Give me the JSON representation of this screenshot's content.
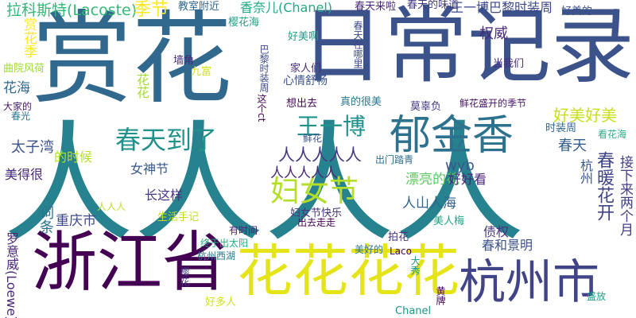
{
  "palette": {
    "dark_purple": "#440154",
    "indigo": "#3b528b",
    "blue": "#31688e",
    "teal": "#21918c",
    "green": "#35b779",
    "light_green": "#90d743",
    "yellow": "#e5e419"
  },
  "words": [
    {
      "text": "人人人人",
      "color": "#26828e"
    },
    {
      "text": "日常记录",
      "color": "#3b528b"
    },
    {
      "text": "赏花",
      "color": "#31688e"
    },
    {
      "text": "浙江省",
      "color": "#440154"
    },
    {
      "text": "花花花花",
      "color": "#e5e419"
    },
    {
      "text": "杭州市",
      "color": "#414487"
    },
    {
      "text": "郁金香",
      "color": "#2c728e"
    },
    {
      "text": "春天到了",
      "color": "#21918c"
    },
    {
      "text": "王一博",
      "color": "#21918c"
    },
    {
      "text": "妇女节",
      "color": "#b5de2b"
    },
    {
      "text": "人人人人人",
      "color": "#443983"
    },
    {
      "text": "好美好美",
      "color": "#c8e020"
    },
    {
      "text": "拉科斯特(Lacoste)",
      "color": "#35b779"
    },
    {
      "text": "季节",
      "color": "#fde725"
    },
    {
      "text": "教室附近",
      "color": "#31688e"
    },
    {
      "text": "香奈儿(Chanel)",
      "color": "#22a884"
    },
    {
      "text": "春天来啦",
      "color": "#482878"
    },
    {
      "text": "春天的味道",
      "color": "#443983"
    },
    {
      "text": "王一博巴黎时装周",
      "color": "#3e4989"
    },
    {
      "text": "好美的",
      "color": "#3b528b"
    },
    {
      "text": "樱花海",
      "color": "#1fa187"
    },
    {
      "text": "好美啊",
      "color": "#1f9e89"
    },
    {
      "text": "春天在哪里",
      "color": "#3e4989"
    },
    {
      "text": "权威",
      "color": "#482878"
    },
    {
      "text": "赏花季",
      "color": "#fde725"
    },
    {
      "text": "曲院风荷",
      "color": "#a0da39"
    },
    {
      "text": "花海",
      "color": "#31688e"
    },
    {
      "text": "墙角",
      "color": "#482878"
    },
    {
      "text": "九富",
      "color": "#d0e11c"
    },
    {
      "text": "家人们",
      "color": "#472d7b"
    },
    {
      "text": "心情舒畅",
      "color": "#3b528b"
    },
    {
      "text": "巴黎时装周",
      "color": "#3e4989"
    },
    {
      "text": "当我们",
      "color": "#472d7b"
    },
    {
      "text": "花花",
      "color": "#a5db36"
    },
    {
      "text": "大家的",
      "color": "#48186a"
    },
    {
      "text": "这个ct",
      "color": "#440154"
    },
    {
      "text": "想出去",
      "color": "#460a5d"
    },
    {
      "text": "真的很美",
      "color": "#2a788e"
    },
    {
      "text": "莫辜负",
      "color": "#443983"
    },
    {
      "text": "鲜花盛开的季节",
      "color": "#481467"
    },
    {
      "text": "春光",
      "color": "#2a788e"
    },
    {
      "text": "时装周",
      "color": "#31688e"
    },
    {
      "text": "看花海",
      "color": "#29af7f"
    },
    {
      "text": "春天",
      "color": "#355f8d"
    },
    {
      "text": "太子湾",
      "color": "#3b528b"
    },
    {
      "text": "鲜花",
      "color": "#3b528b"
    },
    {
      "text": "的时候",
      "color": "#b5de2b"
    },
    {
      "text": "人人人人人",
      "color": "#482878"
    },
    {
      "text": "春暖花开",
      "color": "#404588"
    },
    {
      "text": "接下来两个月",
      "color": "#424086"
    },
    {
      "text": "美得很",
      "color": "#482878"
    },
    {
      "text": "出门踏青",
      "color": "#2e6e8e"
    },
    {
      "text": "女神节",
      "color": "#38598c"
    },
    {
      "text": "漂亮的花",
      "color": "#5ec962"
    },
    {
      "text": "wyb",
      "color": "#38598c"
    },
    {
      "text": "好好看",
      "color": "#482677"
    },
    {
      "text": "杭州",
      "color": "#39568c"
    },
    {
      "text": "长这样",
      "color": "#453781"
    },
    {
      "text": "人山人海",
      "color": "#32648e"
    },
    {
      "text": "词条",
      "color": "#2c728e"
    },
    {
      "text": "妇女节快乐",
      "color": "#46337e"
    },
    {
      "text": "重庆市",
      "color": "#3e4989"
    },
    {
      "text": "生活手记",
      "color": "#bddf26"
    },
    {
      "text": "出去走走",
      "color": "#440154"
    },
    {
      "text": "美人梅",
      "color": "#20a486"
    },
    {
      "text": "罗意威(Loewe)",
      "color": "#482878"
    },
    {
      "text": "人人人",
      "color": "#bddf26"
    },
    {
      "text": "债权",
      "color": "#46337e"
    },
    {
      "text": "有时间",
      "color": "#482475"
    },
    {
      "text": "终于出太阳",
      "color": "#25ac82"
    },
    {
      "text": "拍花",
      "color": "#46327e"
    },
    {
      "text": "春和景明",
      "color": "#3b528b"
    },
    {
      "text": "杭州西湖",
      "color": "#2a788e"
    },
    {
      "text": "美好的",
      "color": "#2c728e"
    },
    {
      "text": "Laco",
      "color": "#440154"
    },
    {
      "text": "大秀",
      "color": "#21918c"
    },
    {
      "text": "樱花",
      "color": "#453581"
    },
    {
      "text": "黄牌",
      "color": "#440154"
    },
    {
      "text": "好多人",
      "color": "#d2e21b"
    },
    {
      "text": "Chanel",
      "color": "#21918c"
    },
    {
      "text": "盛放",
      "color": "#1f9f88"
    }
  ]
}
